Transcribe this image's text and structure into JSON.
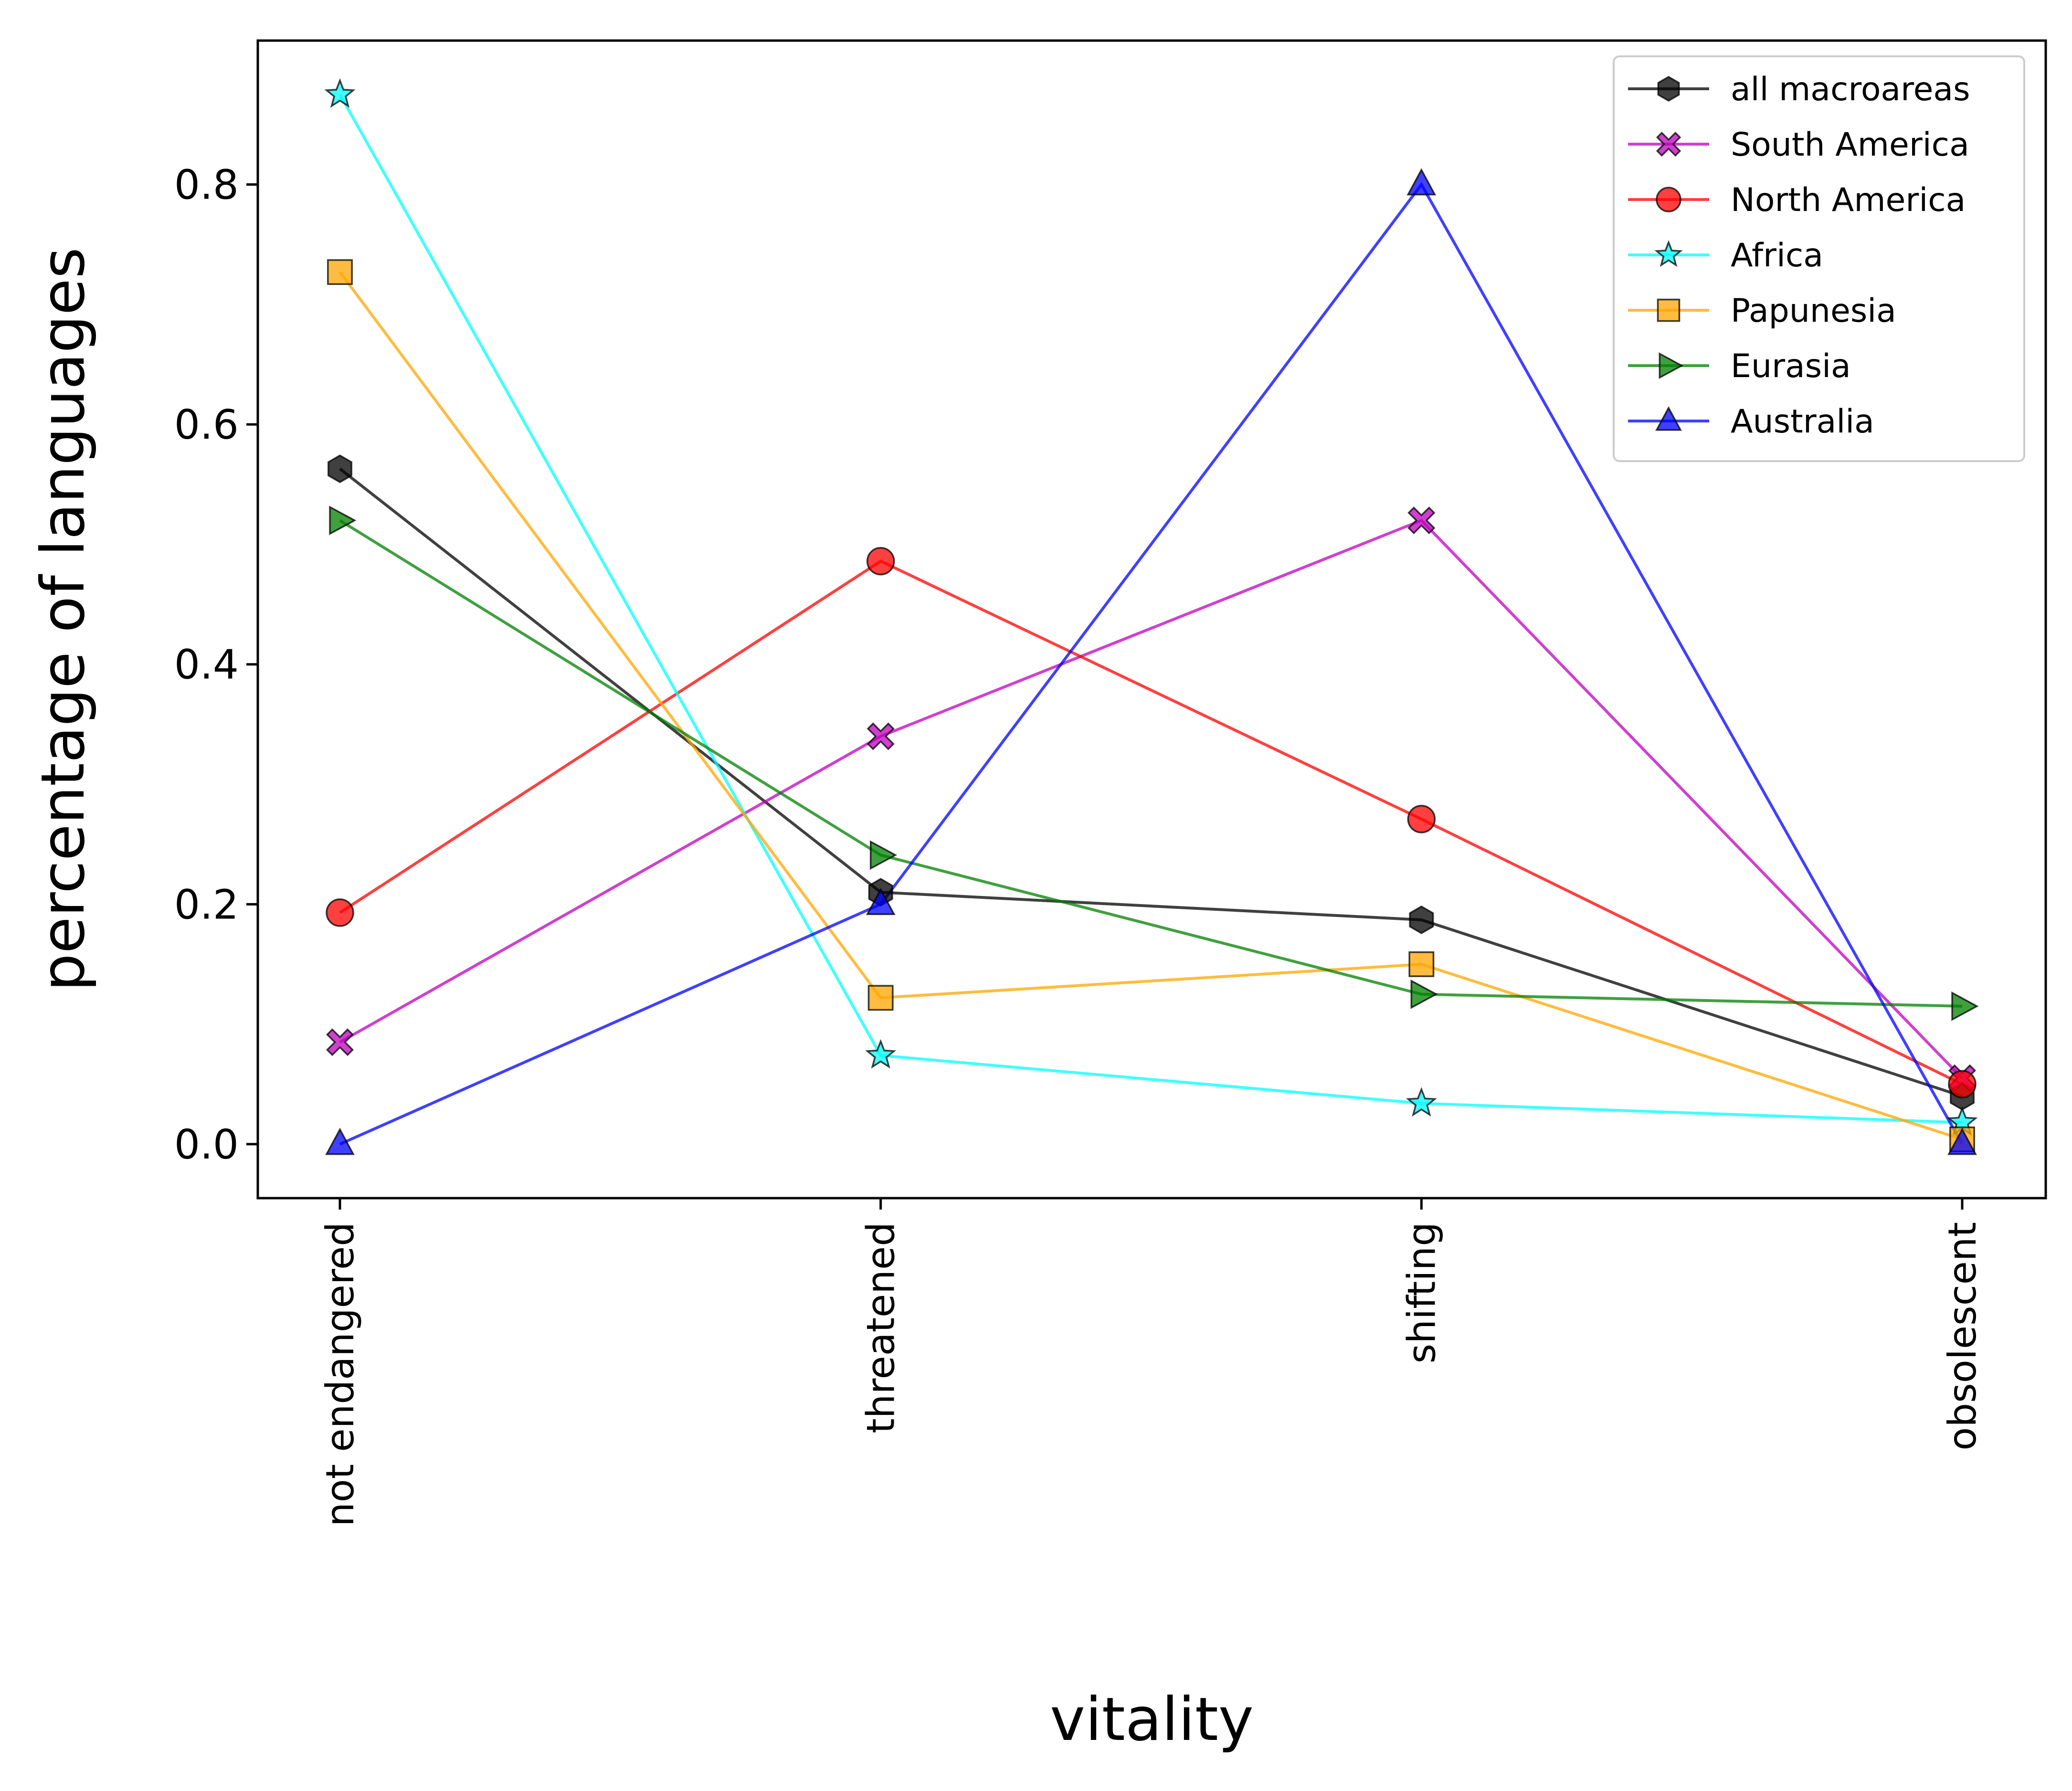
{
  "chart_data": {
    "type": "line",
    "title": "",
    "xlabel": "vitality",
    "ylabel": "percentage of languages",
    "categories": [
      "not endangered",
      "threatened",
      "shifting",
      "obsolescent"
    ],
    "ylim": [
      -0.045,
      0.92
    ],
    "yticks": [
      0.0,
      0.2,
      0.4,
      0.6,
      0.8
    ],
    "ytick_labels": [
      "0.0",
      "0.2",
      "0.4",
      "0.6",
      "0.8"
    ],
    "grid": false,
    "legend_position": "top-right",
    "series": [
      {
        "name": "all macroareas",
        "color": "#000000",
        "marker": "hexagon",
        "values": [
          0.563,
          0.21,
          0.187,
          0.04
        ]
      },
      {
        "name": "South America",
        "color": "#bf00bf",
        "marker": "x-filled",
        "values": [
          0.085,
          0.34,
          0.52,
          0.055
        ]
      },
      {
        "name": "North America",
        "color": "#ff0000",
        "marker": "circle",
        "values": [
          0.193,
          0.486,
          0.271,
          0.05
        ]
      },
      {
        "name": "Africa",
        "color": "#00ffff",
        "marker": "star",
        "values": [
          0.875,
          0.074,
          0.034,
          0.018
        ]
      },
      {
        "name": "Papunesia",
        "color": "#ffa500",
        "marker": "square",
        "values": [
          0.727,
          0.122,
          0.15,
          0.004
        ]
      },
      {
        "name": "Eurasia",
        "color": "#008000",
        "marker": "triangle-right",
        "values": [
          0.52,
          0.241,
          0.125,
          0.115
        ]
      },
      {
        "name": "Australia",
        "color": "#0000ff",
        "marker": "triangle-up",
        "values": [
          0.0,
          0.2,
          0.8,
          0.0
        ]
      }
    ]
  }
}
